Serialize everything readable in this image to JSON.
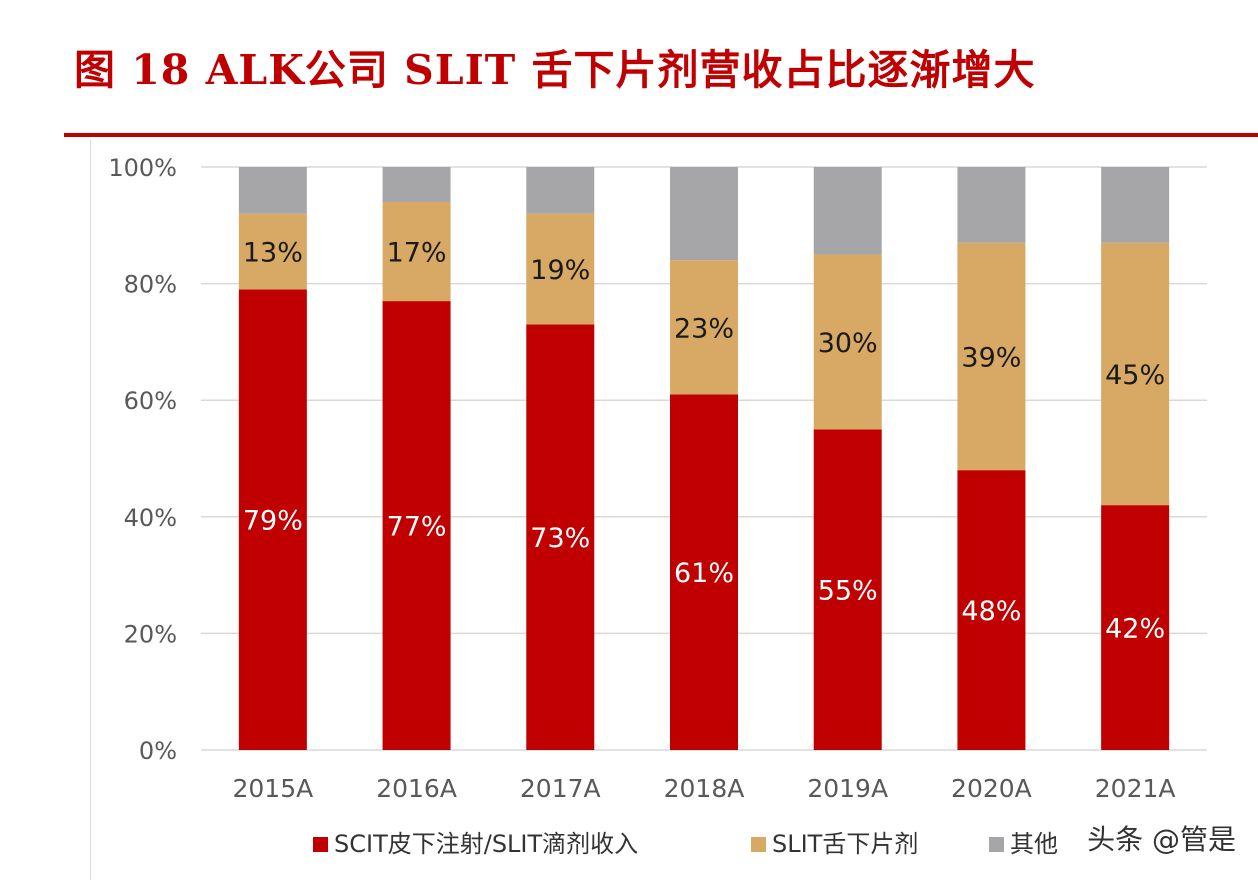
{
  "title": "图 18 ALK公司 SLIT 舌下片剂营收占比逐渐增大",
  "watermark": "头条 @管是",
  "colors": {
    "title": "#c00000",
    "scit": "#c00000",
    "slit": "#d7a965",
    "other": "#a6a6a8",
    "grid": "#d9d9d9",
    "axis_text": "#595959"
  },
  "chart_data": {
    "type": "bar",
    "stacked": true,
    "percent": true,
    "categories": [
      "2015A",
      "2016A",
      "2017A",
      "2018A",
      "2019A",
      "2020A",
      "2021A"
    ],
    "series": [
      {
        "name": "SCIT皮下注射/SLIT滴剂收入",
        "values": [
          79,
          77,
          73,
          61,
          55,
          48,
          42
        ],
        "labels": [
          "79%",
          "77%",
          "73%",
          "61%",
          "55%",
          "48%",
          "42%"
        ]
      },
      {
        "name": "SLIT舌下片剂",
        "values": [
          13,
          17,
          19,
          23,
          30,
          39,
          45
        ],
        "labels": [
          "13%",
          "17%",
          "19%",
          "23%",
          "30%",
          "39%",
          "45%"
        ]
      },
      {
        "name": "其他",
        "values": [
          8,
          6,
          8,
          16,
          15,
          13,
          13
        ],
        "labels": [
          "",
          "",
          "",
          "",
          "",
          "",
          ""
        ]
      }
    ],
    "ylim": [
      0,
      100
    ],
    "yticks": [
      "0%",
      "20%",
      "40%",
      "60%",
      "80%",
      "100%"
    ],
    "xlabel": "",
    "ylabel": "",
    "legend": "bottom",
    "grid": true
  }
}
